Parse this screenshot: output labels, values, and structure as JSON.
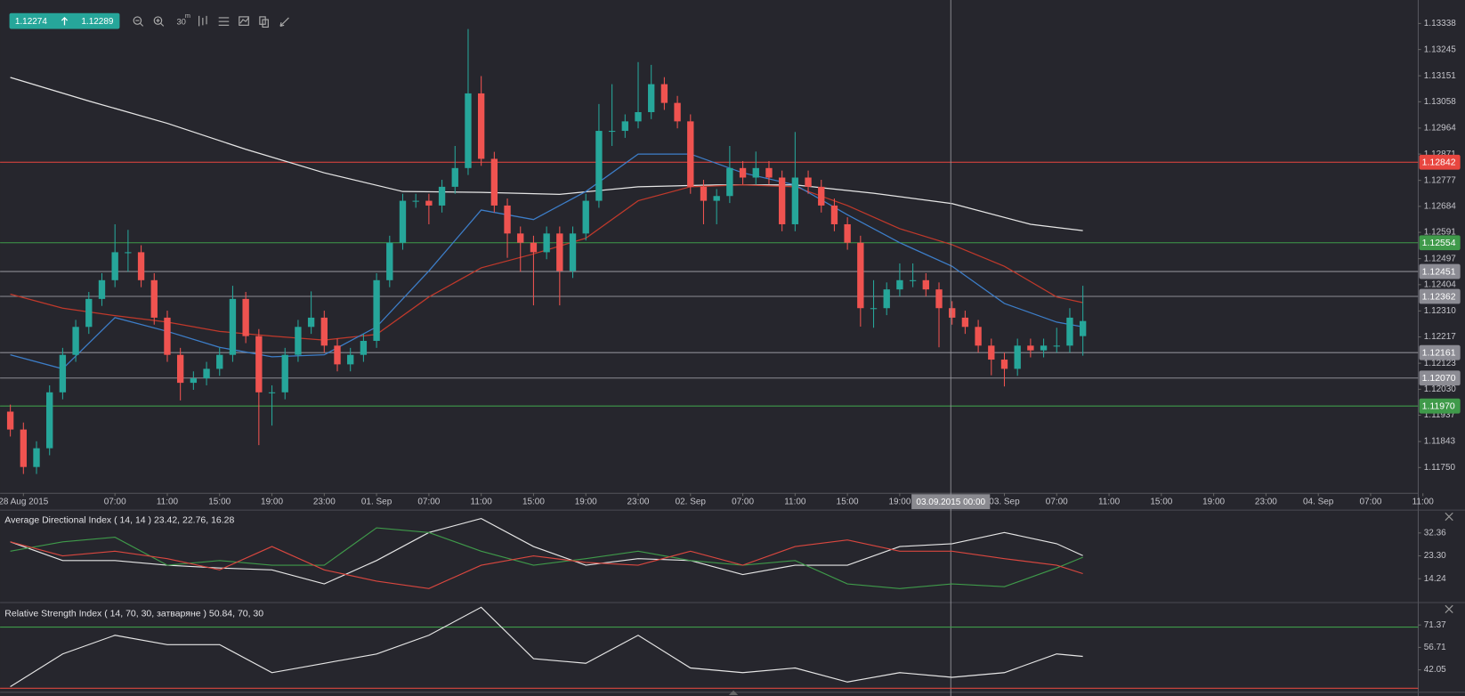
{
  "ticker": {
    "bid": 1.12274,
    "ask": 1.12289
  },
  "toolbar": {
    "timeframe": "30",
    "timeframe_unit": "m"
  },
  "chart_data": [
    {
      "type": "candlestick",
      "up_color": "#26a69a",
      "down_color": "#ef5350",
      "x": [
        -1,
        0,
        1,
        2,
        3,
        4,
        5,
        6,
        7,
        8,
        9,
        10,
        11,
        12,
        13,
        14,
        15,
        16,
        17,
        18,
        19,
        20,
        21,
        22,
        23,
        24,
        25,
        26,
        27,
        28,
        29,
        30,
        31,
        32,
        33,
        34,
        35,
        36,
        37,
        38,
        39,
        40,
        41,
        42,
        43,
        44,
        45,
        46,
        47,
        48,
        49,
        50,
        51,
        52,
        53,
        54,
        55,
        56,
        57,
        58,
        59,
        60,
        61,
        62,
        63,
        64,
        65,
        66,
        67,
        68,
        69,
        70,
        71,
        72,
        73,
        74,
        75,
        76,
        77,
        78,
        79,
        80,
        81
      ],
      "open": [
        1.1195,
        1.11886,
        1.11752,
        1.11819,
        1.12019,
        1.12153,
        1.12253,
        1.12353,
        1.1242,
        1.1252,
        1.1252,
        1.1242,
        1.12286,
        1.12153,
        1.12053,
        1.12069,
        1.12103,
        1.12153,
        1.12353,
        1.1222,
        1.12019,
        1.12019,
        1.12153,
        1.12253,
        1.12286,
        1.12186,
        1.12119,
        1.12153,
        1.12203,
        1.1242,
        1.12554,
        1.12704,
        1.12704,
        1.12687,
        1.12754,
        1.12821,
        1.13088,
        1.12854,
        1.12687,
        1.12587,
        1.12554,
        1.1252,
        1.12587,
        1.12453,
        1.12587,
        1.12704,
        1.12954,
        1.12954,
        1.12988,
        1.13021,
        1.13121,
        1.13054,
        1.12988,
        1.12754,
        1.12704,
        1.12721,
        1.12821,
        1.12787,
        1.12821,
        1.12787,
        1.1262,
        1.12787,
        1.12754,
        1.12687,
        1.1262,
        1.12554,
        1.1232,
        1.1232,
        1.12387,
        1.1242,
        1.1242,
        1.12387,
        1.1232,
        1.12286,
        1.12253,
        1.12186,
        1.12136,
        1.12103,
        1.12186,
        1.12169,
        1.12186,
        1.12186,
        1.1222
      ],
      "high": [
        1.11975,
        1.11911,
        1.11844,
        1.12044,
        1.12178,
        1.12278,
        1.12378,
        1.12445,
        1.1262,
        1.126,
        1.12545,
        1.12445,
        1.12311,
        1.12178,
        1.12094,
        1.12128,
        1.12178,
        1.124,
        1.12378,
        1.12245,
        1.12044,
        1.12178,
        1.12278,
        1.1238,
        1.12311,
        1.12211,
        1.12178,
        1.12228,
        1.12445,
        1.12579,
        1.12729,
        1.12729,
        1.12729,
        1.12779,
        1.129,
        1.13318,
        1.1315,
        1.12879,
        1.12712,
        1.12612,
        1.12579,
        1.12612,
        1.12612,
        1.12612,
        1.12729,
        1.1305,
        1.13121,
        1.13013,
        1.132,
        1.1319,
        1.13146,
        1.13079,
        1.13013,
        1.12779,
        1.12746,
        1.129,
        1.12846,
        1.1288,
        1.12846,
        1.12812,
        1.1295,
        1.12812,
        1.12779,
        1.12712,
        1.12645,
        1.12579,
        1.1242,
        1.12412,
        1.1248,
        1.1248,
        1.12445,
        1.12412,
        1.12345,
        1.12311,
        1.12278,
        1.12211,
        1.12161,
        1.12211,
        1.12211,
        1.12211,
        1.1225,
        1.1232,
        1.124
      ],
      "low": [
        1.11861,
        1.11727,
        1.11727,
        1.11794,
        1.11994,
        1.12128,
        1.12228,
        1.12328,
        1.12395,
        1.1245,
        1.12395,
        1.12261,
        1.12128,
        1.1199,
        1.12028,
        1.12044,
        1.12078,
        1.12128,
        1.12195,
        1.1183,
        1.119,
        1.11994,
        1.12128,
        1.12228,
        1.12161,
        1.12094,
        1.12094,
        1.12128,
        1.12178,
        1.12395,
        1.12529,
        1.12679,
        1.1262,
        1.12662,
        1.12729,
        1.12796,
        1.12829,
        1.12662,
        1.125,
        1.1245,
        1.1233,
        1.12495,
        1.1233,
        1.12428,
        1.12562,
        1.12679,
        1.129,
        1.12929,
        1.12963,
        1.12996,
        1.13029,
        1.12963,
        1.12729,
        1.1262,
        1.1262,
        1.12696,
        1.12762,
        1.12762,
        1.12762,
        1.12595,
        1.12595,
        1.12729,
        1.12662,
        1.12595,
        1.12529,
        1.12254,
        1.1225,
        1.12295,
        1.12362,
        1.12395,
        1.12362,
        1.1218,
        1.12261,
        1.12228,
        1.12161,
        1.1208,
        1.1204,
        1.12078,
        1.12144,
        1.12144,
        1.12161,
        1.12161,
        1.1215
      ],
      "close": [
        1.11886,
        1.11752,
        1.11819,
        1.12019,
        1.12153,
        1.12253,
        1.12353,
        1.1242,
        1.1252,
        1.1252,
        1.1242,
        1.12286,
        1.12153,
        1.12053,
        1.12069,
        1.12103,
        1.12153,
        1.12353,
        1.1222,
        1.12019,
        1.12019,
        1.12153,
        1.12253,
        1.12286,
        1.12186,
        1.12119,
        1.12153,
        1.12203,
        1.1242,
        1.12554,
        1.12704,
        1.12704,
        1.12687,
        1.12754,
        1.12821,
        1.13088,
        1.12854,
        1.12687,
        1.12587,
        1.12554,
        1.1252,
        1.12587,
        1.12453,
        1.12587,
        1.12704,
        1.12954,
        1.12954,
        1.12988,
        1.13021,
        1.13121,
        1.13054,
        1.12988,
        1.12754,
        1.12704,
        1.12721,
        1.12821,
        1.12787,
        1.12821,
        1.12787,
        1.1262,
        1.12787,
        1.12754,
        1.12687,
        1.1262,
        1.12554,
        1.1232,
        1.1232,
        1.12387,
        1.1242,
        1.1242,
        1.12387,
        1.1232,
        1.12286,
        1.12253,
        1.12186,
        1.12136,
        1.12103,
        1.12186,
        1.12169,
        1.12186,
        1.12186,
        1.12286,
        1.12274
      ],
      "overlays": [
        {
          "color": "#e6e6e6",
          "x": [
            -1,
            5,
            11,
            17,
            23,
            29,
            35,
            41,
            47,
            53,
            59,
            65,
            71,
            77,
            81
          ],
          "values": [
            1.13145,
            1.13061,
            1.12981,
            1.12888,
            1.12804,
            1.12737,
            1.12734,
            1.12727,
            1.12754,
            1.12761,
            1.12761,
            1.12731,
            1.12694,
            1.1262,
            1.12597
          ]
        },
        {
          "color": "#c0392b",
          "x": [
            -1,
            3,
            7,
            11,
            15,
            19,
            23,
            27,
            31,
            35,
            39,
            43,
            47,
            51,
            55,
            59,
            63,
            67,
            71,
            75,
            79,
            81
          ],
          "values": [
            1.1237,
            1.1232,
            1.12293,
            1.1227,
            1.12237,
            1.1222,
            1.12206,
            1.12226,
            1.1236,
            1.12464,
            1.12514,
            1.1257,
            1.12704,
            1.12754,
            1.12761,
            1.12754,
            1.12687,
            1.12604,
            1.12547,
            1.1247,
            1.1236,
            1.1234
          ]
        },
        {
          "color": "#3d7ec9",
          "x": [
            -1,
            3,
            7,
            11,
            15,
            19,
            23,
            27,
            31,
            35,
            39,
            43,
            47,
            51,
            55,
            59,
            63,
            67,
            71,
            75,
            79,
            81
          ],
          "values": [
            1.12153,
            1.12103,
            1.12286,
            1.12237,
            1.1218,
            1.12146,
            1.12153,
            1.12253,
            1.12453,
            1.12671,
            1.12637,
            1.12737,
            1.12871,
            1.12871,
            1.12804,
            1.12761,
            1.12654,
            1.12554,
            1.1247,
            1.12337,
            1.1227,
            1.12253
          ]
        }
      ],
      "levels": [
        {
          "value": 1.12842,
          "color": "#e8463f"
        },
        {
          "value": 1.12554,
          "color": "#3f9a4a"
        },
        {
          "value": 1.12451,
          "color": "#8c8c94"
        },
        {
          "value": 1.12362,
          "color": "#8c8c94"
        },
        {
          "value": 1.12161,
          "color": "#8c8c94"
        },
        {
          "value": 1.1207,
          "label": "1.12070",
          "color": "#8c8c94"
        },
        {
          "value": 1.1197,
          "label": "1.11970",
          "color": "#3f9a4a"
        }
      ],
      "level_labels": true,
      "xlim": [
        -1.786,
        106.64
      ],
      "ylim": [
        1.11658,
        1.13422
      ],
      "yticks": [
        1.13338,
        1.13245,
        1.13151,
        1.13058,
        1.12964,
        1.12871,
        1.12777,
        1.12684,
        1.12591,
        1.12497,
        1.12404,
        {
          "value": 1.1231,
          "label": "1.12310"
        },
        1.12217,
        1.12123,
        {
          "value": 1.1203,
          "label": "1.12030"
        },
        1.11937,
        1.11843,
        {
          "value": 1.1175,
          "label": "1.11750"
        }
      ],
      "xticks": [
        {
          "value": 0,
          "label": "28 Aug 2015"
        },
        {
          "value": 7,
          "label": "07:00"
        },
        {
          "value": 11,
          "label": "11:00"
        },
        {
          "value": 15,
          "label": "15:00"
        },
        {
          "value": 19,
          "label": "19:00"
        },
        {
          "value": 23,
          "label": "23:00"
        },
        {
          "value": 27,
          "label": "01. Sep"
        },
        {
          "value": 31,
          "label": "07:00"
        },
        {
          "value": 35,
          "label": "11:00"
        },
        {
          "value": 39,
          "label": "15:00"
        },
        {
          "value": 43,
          "label": "19:00"
        },
        {
          "value": 47,
          "label": "23:00"
        },
        {
          "value": 51,
          "label": "02. Sep"
        },
        {
          "value": 55,
          "label": "07:00"
        },
        {
          "value": 59,
          "label": "11:00"
        },
        {
          "value": 63,
          "label": "15:00"
        },
        {
          "value": 67,
          "label": "19:00"
        },
        {
          "value": 75,
          "label": "03. Sep"
        },
        {
          "value": 79,
          "label": "07:00"
        },
        {
          "value": 83,
          "label": "11:00"
        },
        {
          "value": 87,
          "label": "15:00"
        },
        {
          "value": 91,
          "label": "19:00"
        },
        {
          "value": 95,
          "label": "23:00"
        },
        {
          "value": 99,
          "label": "04. Sep"
        },
        {
          "value": 103,
          "label": "07:00"
        },
        {
          "value": 107,
          "label": "11:00"
        }
      ],
      "crosshair": {
        "x": 70.9,
        "label": "03.09.2015 00:00"
      }
    },
    {
      "type": "line",
      "title": "Average Directional Index ( 14, 14 ) 23.42, 22.76, 16.28",
      "x": [
        -1,
        3,
        7,
        11,
        15,
        19,
        23,
        27,
        31,
        35,
        39,
        43,
        47,
        51,
        55,
        59,
        63,
        67,
        71,
        75,
        79,
        81
      ],
      "series": [
        {
          "color": "#e6e6e6",
          "values": [
            28.85,
            21.45,
            21.45,
            19.6,
            18.49,
            17.75,
            12.2,
            21.45,
            32.55,
            38.1,
            27.0,
            19.6,
            22.19,
            21.45,
            15.9,
            19.6,
            19.6,
            27.0,
            28.11,
            32.55,
            28.11,
            23.42
          ]
        },
        {
          "color": "#3f9a4a",
          "values": [
            25.15,
            28.85,
            30.7,
            19.6,
            21.45,
            19.6,
            19.6,
            34.4,
            32.55,
            25.15,
            19.6,
            22.19,
            25.15,
            21.45,
            19.6,
            21.45,
            12.2,
            10.35,
            12.2,
            11.09,
            18.49,
            22.76
          ]
        },
        {
          "color": "#d9473f",
          "values": [
            28.85,
            23.3,
            25.15,
            22.19,
            17.75,
            27.0,
            17.75,
            13.31,
            10.35,
            19.6,
            23.3,
            20.71,
            19.6,
            25.15,
            19.6,
            27.0,
            29.59,
            25.15,
            25.15,
            22.19,
            19.6,
            16.28
          ]
        }
      ],
      "xlim": [
        -1.786,
        106.64
      ],
      "ylim": [
        5.55,
        41.05
      ],
      "yticks": [
        32.36,
        {
          "value": 23.3,
          "label": "23.30"
        },
        14.24
      ]
    },
    {
      "type": "line",
      "title": "Relative Strength Index ( 14, 70, 30, затваряне ) 50.84, 70, 30",
      "x": [
        -1,
        3,
        7,
        11,
        15,
        19,
        23,
        27,
        31,
        35,
        39,
        43,
        47,
        51,
        55,
        59,
        63,
        67,
        71,
        75,
        79,
        81
      ],
      "series": [
        {
          "color": "#e6e6e6",
          "values": [
            31.05,
            52.43,
            64.65,
            58.54,
            58.54,
            40.21,
            46.32,
            52.43,
            64.65,
            82.98,
            49.38,
            46.32,
            64.65,
            43.27,
            40.21,
            43.27,
            34.1,
            40.21,
            37.16,
            40.21,
            52.43,
            50.84
          ]
        }
      ],
      "levels": [
        {
          "value": 70,
          "color": "#3f9a4a"
        },
        {
          "value": 30,
          "color": "#d9473f"
        }
      ],
      "xlim": [
        -1.786,
        106.64
      ],
      "ylim": [
        28.0,
        84.8
      ],
      "yticks": [
        71.37,
        56.71,
        42.05
      ]
    }
  ]
}
